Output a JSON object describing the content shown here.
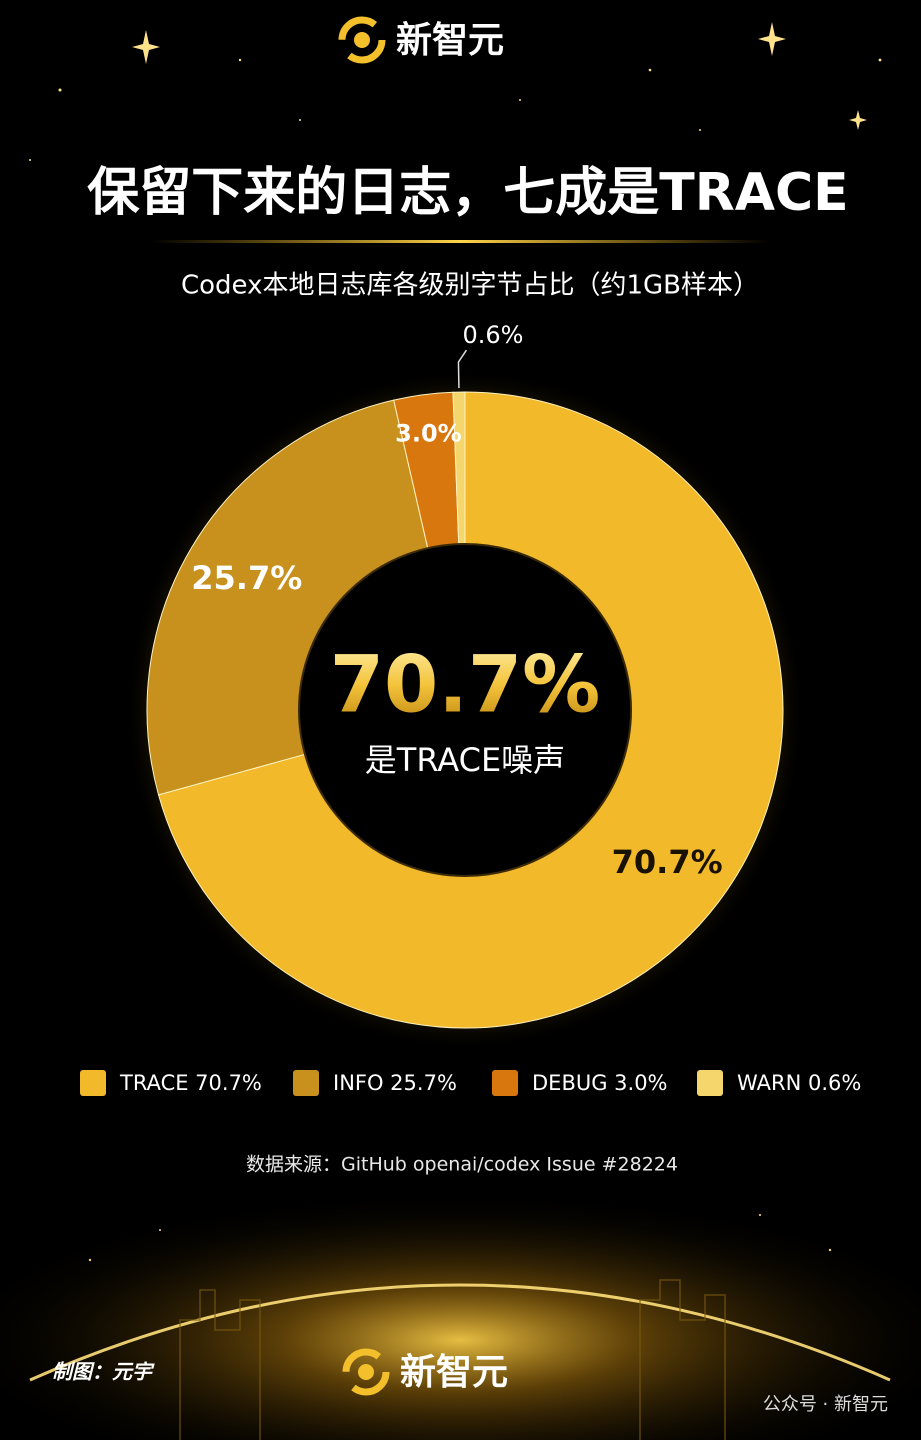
{
  "header": {
    "brand": "新智元"
  },
  "chart_data": {
    "type": "pie",
    "title": "保留下来的日志，七成是TRACE",
    "subtitle": "Codex本地日志库各级别字节占比（约1GB样本）",
    "categories": [
      "TRACE",
      "INFO",
      "DEBUG",
      "WARN"
    ],
    "values": [
      70.7,
      25.7,
      3.0,
      0.6
    ],
    "value_labels": [
      "70.7%",
      "25.7%",
      "3.0%",
      "0.6%"
    ],
    "colors": [
      "#f2b92a",
      "#c8901d",
      "#d9770f",
      "#f4d66c"
    ],
    "legend_labels": [
      "TRACE 70.7%",
      "INFO 25.7%",
      "DEBUG 3.0%",
      "WARN 0.6%"
    ],
    "center_annotation": {
      "value": "70.7%",
      "text": "是TRACE噪声"
    },
    "source": "数据来源：GitHub openai/codex Issue #28224"
  },
  "footer": {
    "credit": "制图：元宇",
    "brand": "新智元",
    "watermark": "公众号 · 新智元"
  }
}
